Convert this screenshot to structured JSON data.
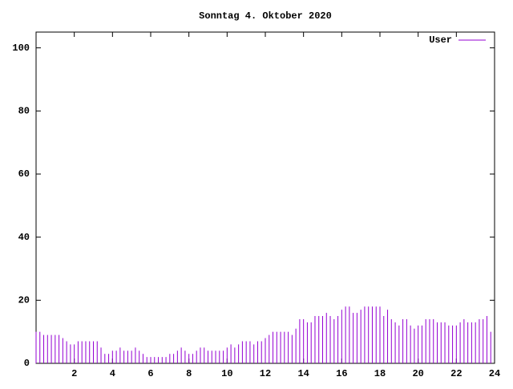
{
  "chart_data": {
    "type": "impulse",
    "title": "Sonntag 4. Oktober 2020",
    "x": [
      0,
      0.2,
      0.4,
      0.6,
      0.8,
      1,
      1.2,
      1.4,
      1.6,
      1.8,
      2,
      2.2,
      2.4,
      2.6,
      2.8,
      3,
      3.2,
      3.4,
      3.6,
      3.8,
      4,
      4.2,
      4.4,
      4.6,
      4.8,
      5,
      5.2,
      5.4,
      5.6,
      5.8,
      6,
      6.2,
      6.4,
      6.6,
      6.8,
      7,
      7.2,
      7.4,
      7.6,
      7.8,
      8,
      8.2,
      8.4,
      8.6,
      8.8,
      9,
      9.2,
      9.4,
      9.6,
      9.8,
      10,
      10.2,
      10.4,
      10.6,
      10.8,
      11,
      11.2,
      11.4,
      11.6,
      11.8,
      12,
      12.2,
      12.4,
      12.6,
      12.8,
      13,
      13.2,
      13.4,
      13.6,
      13.8,
      14,
      14.2,
      14.4,
      14.6,
      14.8,
      15,
      15.2,
      15.4,
      15.6,
      15.8,
      16,
      16.2,
      16.4,
      16.6,
      16.8,
      17,
      17.2,
      17.4,
      17.6,
      17.8,
      18,
      18.2,
      18.4,
      18.6,
      18.8,
      19,
      19.2,
      19.4,
      19.6,
      19.8,
      20,
      20.2,
      20.4,
      20.6,
      20.8,
      21,
      21.2,
      21.4,
      21.6,
      21.8,
      22,
      22.2,
      22.4,
      22.6,
      22.8,
      23,
      23.2,
      23.4,
      23.6,
      23.8
    ],
    "series": [
      {
        "name": "User",
        "color": "#9400d3",
        "values": [
          10,
          10,
          9,
          9,
          9,
          9,
          9,
          8,
          7,
          6,
          6,
          7,
          7,
          7,
          7,
          7,
          7,
          5,
          3,
          3,
          4,
          4,
          5,
          4,
          4,
          4,
          5,
          4,
          3,
          2,
          2,
          2,
          2,
          2,
          2,
          3,
          3,
          4,
          5,
          4,
          3,
          3,
          4,
          5,
          5,
          4,
          4,
          4,
          4,
          4,
          5,
          6,
          5,
          6,
          7,
          7,
          7,
          6,
          7,
          7,
          8,
          9,
          10,
          10,
          10,
          10,
          10,
          9,
          11,
          14,
          14,
          13,
          13,
          15,
          15,
          15,
          16,
          15,
          14,
          15,
          17,
          18,
          18,
          16,
          16,
          17,
          18,
          18,
          18,
          18,
          18,
          15,
          17,
          14,
          13,
          12,
          14,
          14,
          12,
          11,
          12,
          12,
          14,
          14,
          14,
          13,
          13,
          13,
          12,
          12,
          12,
          13,
          14,
          13,
          13,
          13,
          14,
          14,
          15,
          10
        ]
      }
    ],
    "xlim": [
      0,
      24
    ],
    "xticks": [
      2,
      4,
      6,
      8,
      10,
      12,
      14,
      16,
      18,
      20,
      22,
      24
    ],
    "ylim": [
      0,
      105
    ],
    "yticks": [
      0,
      20,
      40,
      60,
      80,
      100
    ],
    "legend": "upper right"
  }
}
